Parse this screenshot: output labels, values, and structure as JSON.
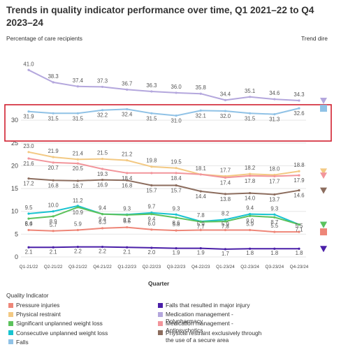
{
  "title": "Trends in quality indicator performance over time, Q1 2021–22 to Q4 2023–24",
  "y_caption": "Percentage of care recipients",
  "trend_caption": "Trend dire",
  "x_title": "Quarter",
  "legend_title": "Quality Indicator",
  "chart_data": {
    "type": "line",
    "title": "Trends in quality indicator performance over time, Q1 2021–22 to Q4 2023–24",
    "xlabel": "Quarter",
    "ylabel": "Percentage of care recipients",
    "ylim": [
      0,
      45
    ],
    "yticks": [
      0,
      5,
      10,
      15,
      20,
      25,
      30
    ],
    "grid": true,
    "categories": [
      "Q1-21/22",
      "Q2-21/22",
      "Q3-21/22",
      "Q4-21/22",
      "Q1-22/23",
      "Q2-22/23",
      "Q3-22/23",
      "Q4-22/23",
      "Q1-23/24",
      "Q2-23/24",
      "Q3-23/24",
      "Q4-23/24"
    ],
    "series": [
      {
        "name": "Medication management - Polypharmacy",
        "color": "#b4a7dd",
        "trend": "down",
        "values": [
          41.0,
          38.3,
          37.4,
          37.3,
          36.7,
          36.3,
          36.0,
          35.8,
          34.4,
          35.1,
          34.6,
          34.3
        ]
      },
      {
        "name": "Falls",
        "color": "#90c2e6",
        "trend": "flat",
        "highlighted": true,
        "values": [
          31.9,
          31.5,
          31.5,
          32.2,
          32.4,
          31.5,
          31.0,
          32.1,
          32.0,
          31.5,
          31.3,
          32.6
        ]
      },
      {
        "name": "Physical restraint",
        "color": "#f3c983",
        "trend": "down",
        "values": [
          23.0,
          21.9,
          21.4,
          21.5,
          21.2,
          19.8,
          19.5,
          18.1,
          17.7,
          18.2,
          18.0,
          18.8
        ]
      },
      {
        "name": "Medication management - Antipsychotics",
        "color": "#f2959b",
        "trend": "down",
        "values": [
          21.6,
          20.7,
          20.5,
          19.3,
          18.4,
          18.4,
          18.4,
          18.1,
          17.4,
          17.8,
          17.7,
          17.9
        ]
      },
      {
        "name": "Physical restraint exclusively through the use of a secure area",
        "color": "#8c6d5e",
        "trend": "down",
        "values": [
          17.2,
          16.8,
          16.7,
          16.9,
          16.8,
          15.7,
          15.7,
          14.4,
          13.8,
          14.0,
          13.7,
          14.6
        ]
      },
      {
        "name": "Consecutive unplanned weight loss",
        "color": "#18c3d0",
        "trend": "down",
        "values": [
          9.5,
          10.0,
          11.2,
          9.4,
          9.3,
          9.7,
          9.3,
          7.8,
          8.2,
          9.4,
          9.3,
          7.1
        ]
      },
      {
        "name": "Significant unplanned weight loss",
        "color": "#5cc25c",
        "trend": "down",
        "values": [
          8.4,
          8.9,
          10.9,
          9.4,
          9.2,
          9.4,
          8.6,
          7.7,
          7.8,
          9.0,
          8.7,
          7.1
        ]
      },
      {
        "name": "Pressure injuries",
        "color": "#ee8678",
        "trend": "flat",
        "values": [
          5.9,
          5.7,
          5.9,
          6.3,
          6.5,
          6.0,
          5.8,
          5.9,
          5.9,
          5.9,
          5.5,
          5.5
        ]
      },
      {
        "name": "Falls that resulted in major injury",
        "color": "#4a1fa8",
        "trend": "down",
        "values": [
          2.1,
          2.1,
          2.2,
          2.2,
          2.1,
          2.0,
          1.9,
          1.9,
          1.7,
          1.8,
          1.8,
          1.8
        ]
      }
    ],
    "point_labels": [
      [
        "41.0",
        "38.3",
        "37.4",
        "37.3",
        "36.7",
        "36.3",
        "36.0",
        "35.8",
        "34.4",
        "35.1",
        "34.6",
        "34.3"
      ],
      [
        "31.9",
        "31.5",
        "31.5",
        "32.2",
        "32.4",
        "31.5",
        "31.0",
        "32.1",
        "32.0",
        "31.5",
        "31.3",
        "32.6"
      ],
      [
        "23.0",
        "21.9",
        "21.4",
        "21.5",
        "21.2",
        "19.8",
        "19.5",
        "18.1",
        "17.7",
        "18.2",
        "18.0",
        "18.8"
      ],
      [
        "21.6",
        "20.7",
        "20.5",
        "19.3",
        "18.4",
        "",
        "18.4",
        "",
        "17.4",
        "17.8",
        "17.7",
        "17.9"
      ],
      [
        "17.2",
        "16.8",
        "16.7",
        "16.9",
        "16.8",
        "15.7",
        "15.7",
        "14.4",
        "13.8",
        "14.0",
        "13.7",
        "14.6"
      ],
      [
        "9.5",
        "10.0",
        "11.2",
        "9.4",
        "9.3",
        "9.7",
        "9.3",
        "7.8",
        "8.2",
        "9.4",
        "9.3",
        ""
      ],
      [
        "8.4",
        "8.9",
        "10.9",
        "9.4",
        "9.2",
        "9.4",
        "8.6",
        "7.7",
        "7.8",
        "9.0",
        "8.7",
        "7.1"
      ],
      [
        "5.9",
        "5.7",
        "5.9",
        "6.3",
        "6.5",
        "6.0",
        "5.8",
        "5.9",
        "5.9",
        "5.9",
        "5.5",
        "5.5"
      ],
      [
        "2.1",
        "2.1",
        "2.2",
        "2.2",
        "2.1",
        "2.0",
        "1.9",
        "1.9",
        "1.7",
        "1.8",
        "1.8",
        "1.8"
      ]
    ],
    "legend_order": [
      "Pressure injuries",
      "Physical restraint",
      "Significant unplanned weight loss",
      "Consecutive unplanned weight loss",
      "Falls",
      "Falls that resulted in major injury",
      "Medication management - Polypharmacy",
      "Medication management - Antipsychotics",
      "Physical restraint exclusively through the use of a secure area"
    ],
    "highlight_color": "#d01f2f"
  }
}
